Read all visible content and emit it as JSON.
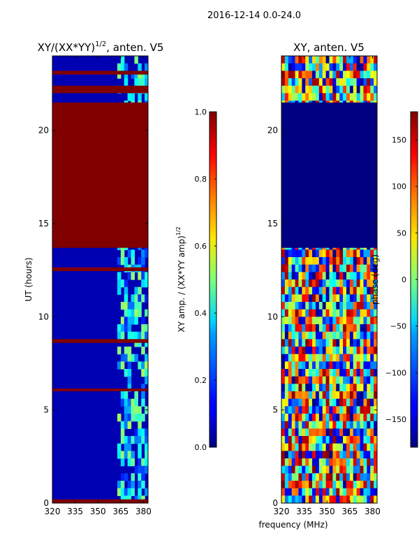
{
  "suptitle": "2016-12-14 0.0-24.0",
  "shared_xlabel": "frequency (MHz)",
  "colors": {
    "jet_low": "#00007f",
    "jet_mid_blue": "#0000ff",
    "jet_cyan": "#00ffff",
    "jet_yellow": "#ffff00",
    "jet_red": "#ff0000",
    "jet_high": "#7f0000"
  },
  "chart_data": [
    {
      "type": "heatmap",
      "title_main": "XY/(XX*YY)",
      "title_sup": "1/2",
      "title_tail": ", anten. V5",
      "xlabel": "",
      "ylabel": "UT (hours)",
      "xlim": [
        320,
        383
      ],
      "ylim": [
        0,
        24
      ],
      "xticks": [
        "320",
        "335",
        "350",
        "365",
        "380"
      ],
      "xtick_values": [
        320,
        335,
        350,
        365,
        380
      ],
      "yticks": [
        "0",
        "5",
        "10",
        "15",
        "20"
      ],
      "ytick_values": [
        0,
        5,
        10,
        15,
        20
      ],
      "colormap": "jet",
      "colorbar": {
        "label_main": "XY amp. / (XX*YY amp)",
        "label_sup": "1/2",
        "ticks": [
          "0.0",
          "0.2",
          "0.4",
          "0.6",
          "0.8",
          "1.0"
        ],
        "tick_values": [
          0.0,
          0.2,
          0.4,
          0.6,
          0.8,
          1.0
        ],
        "range": [
          0.0,
          1.0
        ]
      },
      "regions": [
        {
          "t_start": 13.7,
          "t_end": 21.5,
          "value": 1.0,
          "note": "saturated band"
        },
        {
          "t_start": 0.0,
          "t_end": 0.2,
          "value": 1.0
        },
        {
          "t_start": 12.45,
          "t_end": 12.65,
          "value": 1.0
        },
        {
          "t_start": 8.6,
          "t_end": 8.8,
          "value": 1.0
        },
        {
          "t_start": 6.0,
          "t_end": 6.15,
          "value": 1.0
        },
        {
          "t_start": 22.0,
          "t_end": 22.4,
          "value": 1.0
        },
        {
          "t_start": 23.0,
          "t_end": 23.2,
          "value": 1.0
        }
      ],
      "background_value": 0.05,
      "active_freq_range": [
        362,
        383
      ]
    },
    {
      "type": "heatmap",
      "title_main": "XY, anten. V5",
      "xlabel": "frequency (MHz)",
      "ylabel": "",
      "xlim": [
        320,
        383
      ],
      "ylim": [
        0,
        24
      ],
      "xticks": [
        "320",
        "335",
        "350",
        "365",
        "380"
      ],
      "xtick_values": [
        320,
        335,
        350,
        365,
        380
      ],
      "yticks": [
        "0",
        "5",
        "10",
        "15",
        "20"
      ],
      "ytick_values": [
        0,
        5,
        10,
        15,
        20
      ],
      "colormap": "jet",
      "colorbar": {
        "label_main": "phase (deg)",
        "ticks": [
          "150",
          "100",
          "50",
          "0",
          "−50",
          "−100",
          "−150"
        ],
        "tick_values": [
          150,
          100,
          50,
          0,
          -50,
          -100,
          -150
        ],
        "range": [
          -180,
          180
        ]
      },
      "regions": [
        {
          "t_start": 13.7,
          "t_end": 21.5,
          "value": -180,
          "note": "uniform low phase band"
        }
      ],
      "background_value": 0
    }
  ]
}
